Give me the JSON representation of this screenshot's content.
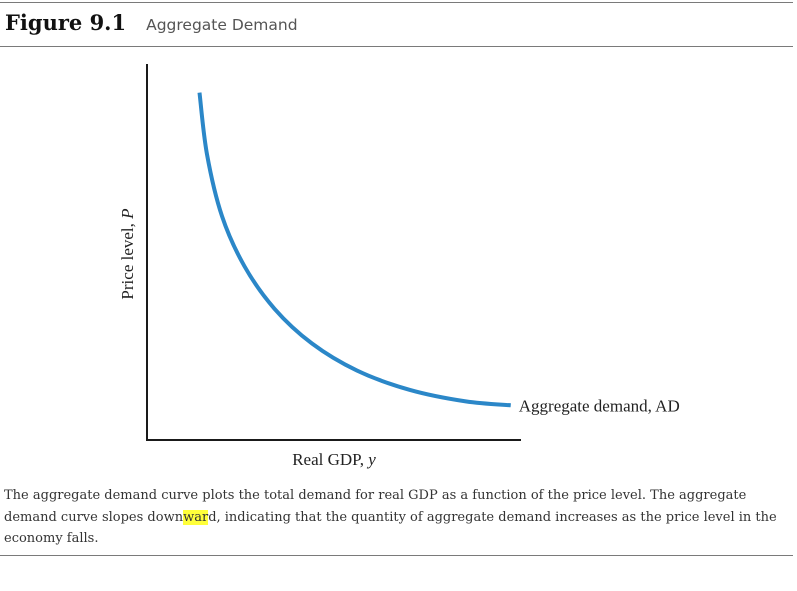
{
  "figure": {
    "label": "Figure 9.1",
    "title": "Aggregate Demand"
  },
  "caption": {
    "before_highlight": "The aggregate demand curve plots the total demand for real GDP as a function of the price level. The aggregate demand curve slopes down",
    "highlight": "war",
    "after_highlight": "d, indicating that the quantity of aggregate demand increases as the price level in the economy falls."
  },
  "colors": {
    "curve": "#2b87c8",
    "axis": "#1a1a1a",
    "highlight": "#ffff3a"
  },
  "chart_data": {
    "type": "line",
    "title": "",
    "xlabel_text": "Real GDP, ",
    "xlabel_var": "y",
    "ylabel_text": "Price level, ",
    "ylabel_var": "P",
    "xlim": [
      0,
      10
    ],
    "ylim": [
      0,
      10
    ],
    "grid": false,
    "ticks_shown": false,
    "series": [
      {
        "name": "Aggregate demand, AD",
        "label_placement": "right of curve end",
        "x": [
          1.4,
          1.6,
          2.0,
          2.6,
          3.4,
          4.4,
          5.6,
          7.0,
          8.5,
          9.7
        ],
        "y": [
          9.0,
          7.4,
          5.8,
          4.5,
          3.4,
          2.5,
          1.8,
          1.3,
          1.0,
          0.9
        ]
      }
    ]
  }
}
